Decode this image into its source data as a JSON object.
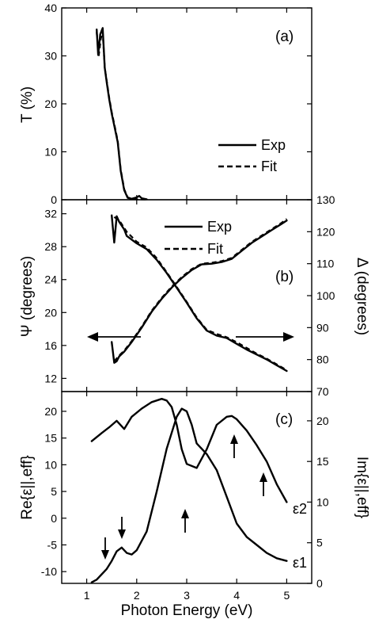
{
  "chart_data": [
    {
      "panel_label": "(a)",
      "type": "line",
      "xlabel": "Photon Energy (eV)",
      "ylabel": "T (%)",
      "xlim": [
        0.5,
        5.5
      ],
      "ylim": [
        0,
        40
      ],
      "yticks": [
        0,
        10,
        20,
        30,
        40
      ],
      "legend": [
        "Exp",
        "Fit"
      ],
      "legend_position": "right",
      "series": [
        {
          "name": "Exp",
          "style": "solid",
          "x": [
            1.2,
            1.23,
            1.27,
            1.32,
            1.36,
            1.4,
            1.45,
            1.5,
            1.55,
            1.62,
            1.68,
            1.75,
            1.82,
            1.9,
            2.0,
            2.05,
            2.1,
            2.2
          ],
          "y": [
            35.5,
            30.2,
            34.5,
            35.8,
            27.5,
            24.5,
            21.0,
            18.0,
            15.5,
            12.0,
            6.0,
            2.0,
            0.4,
            0.2,
            0.5,
            0.8,
            0.3,
            0.1
          ]
        },
        {
          "name": "Fit",
          "style": "dashed",
          "x": [
            1.2,
            1.24,
            1.28,
            1.32,
            1.36,
            1.4,
            1.45,
            1.5,
            1.55,
            1.62,
            1.68,
            1.75,
            1.82,
            1.9,
            2.0,
            2.2
          ],
          "y": [
            35.0,
            30.0,
            33.5,
            35.0,
            27.5,
            24.8,
            21.3,
            18.3,
            15.8,
            12.3,
            6.3,
            2.2,
            0.5,
            0.2,
            0.1,
            0.05
          ]
        }
      ]
    },
    {
      "panel_label": "(b)",
      "type": "line",
      "xlabel": "Photon Energy (eV)",
      "ylabel": "Ψ (degrees)",
      "ylabel_right": "Δ (degrees)",
      "xlim": [
        0.5,
        5.5
      ],
      "ylim": [
        10.4,
        33.7
      ],
      "ylim_right": [
        70,
        130
      ],
      "yticks": [
        12,
        16,
        20,
        24,
        28,
        32
      ],
      "yticks_right": [
        70,
        80,
        90,
        100,
        110,
        120,
        130
      ],
      "legend": [
        "Exp",
        "Fit"
      ],
      "legend_position": "top-center",
      "series": [
        {
          "name": "Exp",
          "quantity": "Psi",
          "axis": "left",
          "style": "solid",
          "x": [
            1.5,
            1.55,
            1.6,
            1.65,
            1.75,
            1.8,
            2.0,
            2.2,
            2.4,
            2.6,
            2.8,
            3.0,
            3.2,
            3.4,
            3.6,
            3.8,
            4.0,
            4.2,
            4.4,
            4.6,
            4.8,
            5.0
          ],
          "y": [
            31.8,
            28.5,
            31.7,
            31.0,
            30.1,
            29.3,
            28.4,
            27.7,
            26.4,
            24.8,
            23.0,
            21.2,
            19.3,
            17.8,
            17.2,
            16.9,
            16.2,
            15.5,
            14.9,
            14.3,
            13.6,
            12.9
          ]
        },
        {
          "name": "Fit",
          "quantity": "Psi",
          "axis": "left",
          "style": "dashed",
          "x": [
            1.55,
            1.65,
            1.8,
            2.0,
            2.2,
            2.4,
            2.6,
            2.8,
            3.0,
            3.2,
            3.4,
            3.6,
            3.8,
            4.0,
            4.2,
            4.4,
            4.6,
            4.8,
            5.0
          ],
          "y": [
            31.6,
            31.2,
            29.8,
            28.6,
            27.9,
            26.6,
            24.9,
            23.1,
            21.3,
            19.4,
            17.9,
            17.4,
            17.0,
            16.4,
            15.7,
            15.0,
            14.4,
            13.7,
            13.0
          ]
        },
        {
          "name": "Exp",
          "quantity": "Delta",
          "axis": "right",
          "style": "solid",
          "x": [
            1.5,
            1.55,
            1.6,
            1.65,
            1.75,
            1.9,
            2.1,
            2.3,
            2.5,
            2.7,
            2.9,
            3.1,
            3.3,
            3.5,
            3.7,
            3.9,
            4.1,
            4.3,
            4.5,
            4.7,
            4.9,
            5.0
          ],
          "y": [
            85.5,
            79.0,
            79.5,
            81.0,
            82.5,
            85.5,
            90.0,
            95.0,
            99.0,
            102.5,
            105.5,
            108.0,
            109.8,
            110.0,
            110.5,
            111.5,
            114.0,
            116.5,
            118.5,
            120.5,
            122.5,
            123.5
          ]
        },
        {
          "name": "Fit",
          "quantity": "Delta",
          "axis": "right",
          "style": "dashed",
          "x": [
            1.55,
            1.65,
            1.75,
            1.9,
            2.1,
            2.3,
            2.5,
            2.7,
            2.9,
            3.1,
            3.3,
            3.5,
            3.7,
            3.9,
            4.1,
            4.3,
            4.5,
            4.7,
            4.9,
            5.0
          ],
          "y": [
            79.5,
            81.3,
            82.8,
            85.8,
            90.3,
            95.3,
            99.3,
            102.8,
            105.8,
            108.3,
            110.0,
            110.3,
            110.8,
            111.8,
            114.3,
            116.8,
            118.8,
            120.8,
            122.8,
            124.0
          ]
        }
      ]
    },
    {
      "panel_label": "(c)",
      "type": "line",
      "xlabel": "Photon Energy (eV)",
      "ylabel": "Re{ε||,eff}",
      "ylabel_right": "Im{ε||,eff}",
      "xlim": [
        0.5,
        5.5
      ],
      "xticks": [
        1,
        2,
        3,
        4,
        5
      ],
      "ylim": [
        -12.2,
        23.7
      ],
      "ylim_right": [
        0,
        23.6
      ],
      "yticks": [
        -10,
        -5,
        0,
        5,
        10,
        15,
        20
      ],
      "yticks_right": [
        0,
        5,
        10,
        15,
        20
      ],
      "series": [
        {
          "name": "ε1",
          "axis": "left",
          "style": "solid",
          "x": [
            1.1,
            1.2,
            1.3,
            1.4,
            1.5,
            1.6,
            1.7,
            1.8,
            1.9,
            2.0,
            2.2,
            2.4,
            2.6,
            2.8,
            2.9,
            3.0,
            3.1,
            3.2,
            3.4,
            3.6,
            3.8,
            4.0,
            4.2,
            4.4,
            4.6,
            4.8,
            5.0
          ],
          "y": [
            -12.0,
            -11.5,
            -10.5,
            -9.5,
            -8.0,
            -6.2,
            -5.5,
            -6.5,
            -6.8,
            -6.0,
            -2.5,
            5.0,
            13.0,
            19.0,
            20.5,
            20.0,
            17.5,
            14.0,
            12.0,
            9.0,
            4.0,
            -1.0,
            -3.5,
            -5.0,
            -6.5,
            -7.5,
            -8.0
          ]
        },
        {
          "name": "ε2",
          "axis": "right",
          "style": "solid",
          "x": [
            1.1,
            1.3,
            1.45,
            1.6,
            1.75,
            1.9,
            2.1,
            2.3,
            2.5,
            2.6,
            2.7,
            2.8,
            2.9,
            3.0,
            3.2,
            3.4,
            3.6,
            3.8,
            3.9,
            4.0,
            4.2,
            4.4,
            4.6,
            4.8,
            5.0
          ],
          "y": [
            17.5,
            18.5,
            19.2,
            20.0,
            19.0,
            20.5,
            21.5,
            22.3,
            22.7,
            22.5,
            21.7,
            19.5,
            16.5,
            14.7,
            14.2,
            16.5,
            19.5,
            20.5,
            20.6,
            20.2,
            18.8,
            17.0,
            15.0,
            12.2,
            10.0
          ]
        }
      ],
      "annotations": [
        {
          "text": "ε2",
          "near": "ε2 curve at 5 eV"
        },
        {
          "text": "ε1",
          "near": "ε1 curve at 5 eV"
        }
      ]
    }
  ]
}
